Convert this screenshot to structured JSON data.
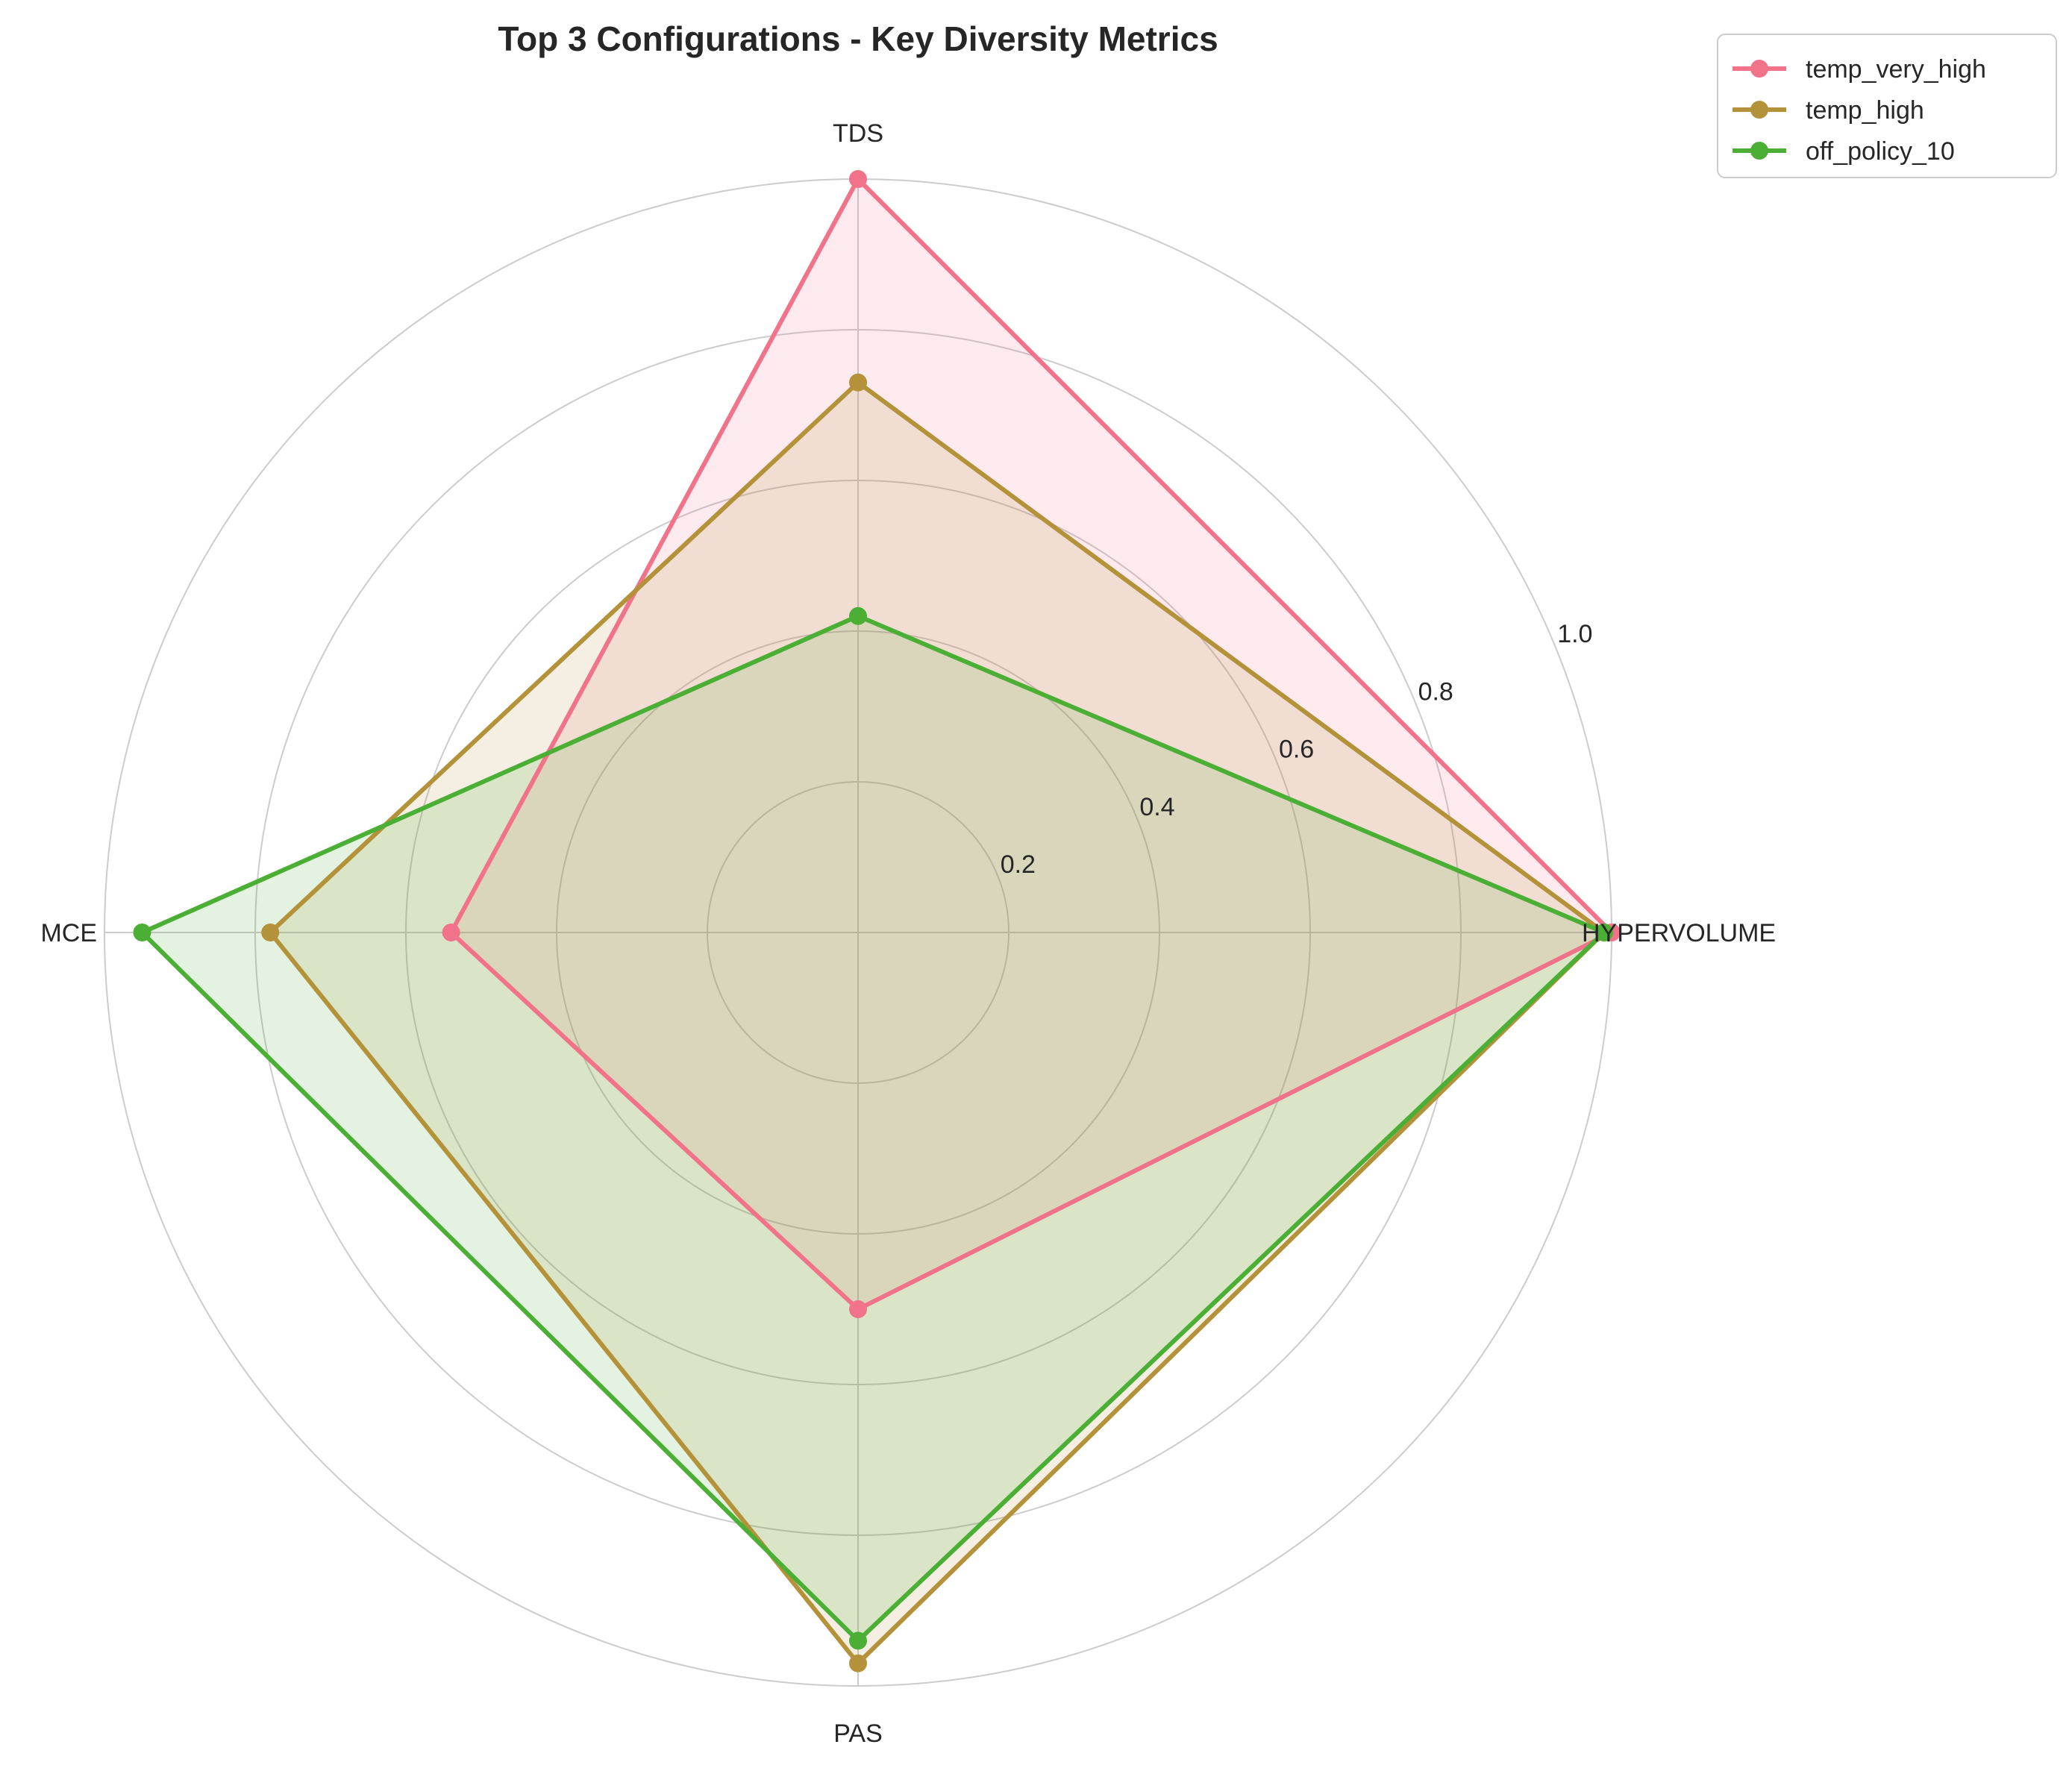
{
  "chart_data": {
    "type": "radar",
    "title": "Top 3 Configurations - Key Diversity Metrics",
    "axes": [
      "HYPERVOLUME",
      "TDS",
      "MCE",
      "PAS"
    ],
    "rlim": [
      0,
      1.0
    ],
    "rticks": [
      0.2,
      0.4,
      0.6,
      0.8,
      1.0
    ],
    "rtick_labels": [
      "0.2",
      "0.4",
      "0.6",
      "0.8",
      "1.0"
    ],
    "grid": true,
    "legend_position": "top-right",
    "series": [
      {
        "name": "temp_very_high",
        "color": "#f0738a",
        "values": [
          1.0,
          1.0,
          0.54,
          0.5
        ]
      },
      {
        "name": "temp_high",
        "color": "#b3923a",
        "values": [
          0.99,
          0.73,
          0.78,
          0.97
        ]
      },
      {
        "name": "off_policy_10",
        "color": "#4caf35",
        "values": [
          0.99,
          0.42,
          0.95,
          0.94
        ]
      }
    ]
  }
}
